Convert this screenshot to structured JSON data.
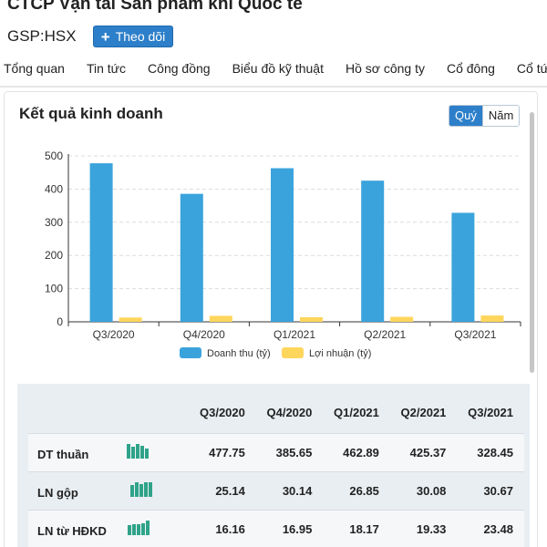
{
  "company": {
    "name": "CTCP Vận tải Sản phẩm khí Quốc tế",
    "ticker": "GSP:HSX",
    "follow_label": "Theo dõi",
    "follow_icon": "plus-icon"
  },
  "tabs": [
    "Tổng quan",
    "Tin tức",
    "Công đồng",
    "Biểu đồ kỹ thuật",
    "Hồ sơ công ty",
    "Cổ đông",
    "Cổ tức"
  ],
  "card": {
    "title": "Kết quả kinh doanh",
    "toggle": {
      "active": "Quý",
      "inactive": "Năm"
    }
  },
  "colors": {
    "accent": "#2d7fc9",
    "revenue": "#3aa3dc",
    "profit": "#ffd65c",
    "spark": "#2fa389"
  },
  "chart_data": {
    "type": "bar",
    "categories": [
      "Q3/2020",
      "Q4/2020",
      "Q1/2021",
      "Q2/2021",
      "Q3/2021"
    ],
    "series": [
      {
        "name": "Doanh thu (tỷ)",
        "values": [
          477.75,
          385.65,
          462.89,
          425.37,
          328.45
        ]
      },
      {
        "name": "Lợi nhuận (tỷ)",
        "values": [
          13,
          18,
          14,
          15,
          19
        ]
      }
    ],
    "yticks": [
      "0",
      "100",
      "200",
      "300",
      "400",
      "500"
    ],
    "ylim": [
      0,
      500
    ],
    "grid": true,
    "legend": "bottom"
  },
  "table": {
    "columns": [
      "Q3/2020",
      "Q4/2020",
      "Q1/2021",
      "Q2/2021",
      "Q3/2021"
    ],
    "rows": [
      {
        "label": "DT thuần",
        "values": [
          "477.75",
          "385.65",
          "462.89",
          "425.37",
          "328.45"
        ]
      },
      {
        "label": "LN gộp",
        "values": [
          "25.14",
          "30.14",
          "26.85",
          "30.08",
          "30.67"
        ]
      },
      {
        "label": "LN từ HĐKD",
        "values": [
          "16.16",
          "16.95",
          "18.17",
          "19.33",
          "23.48"
        ]
      }
    ]
  }
}
